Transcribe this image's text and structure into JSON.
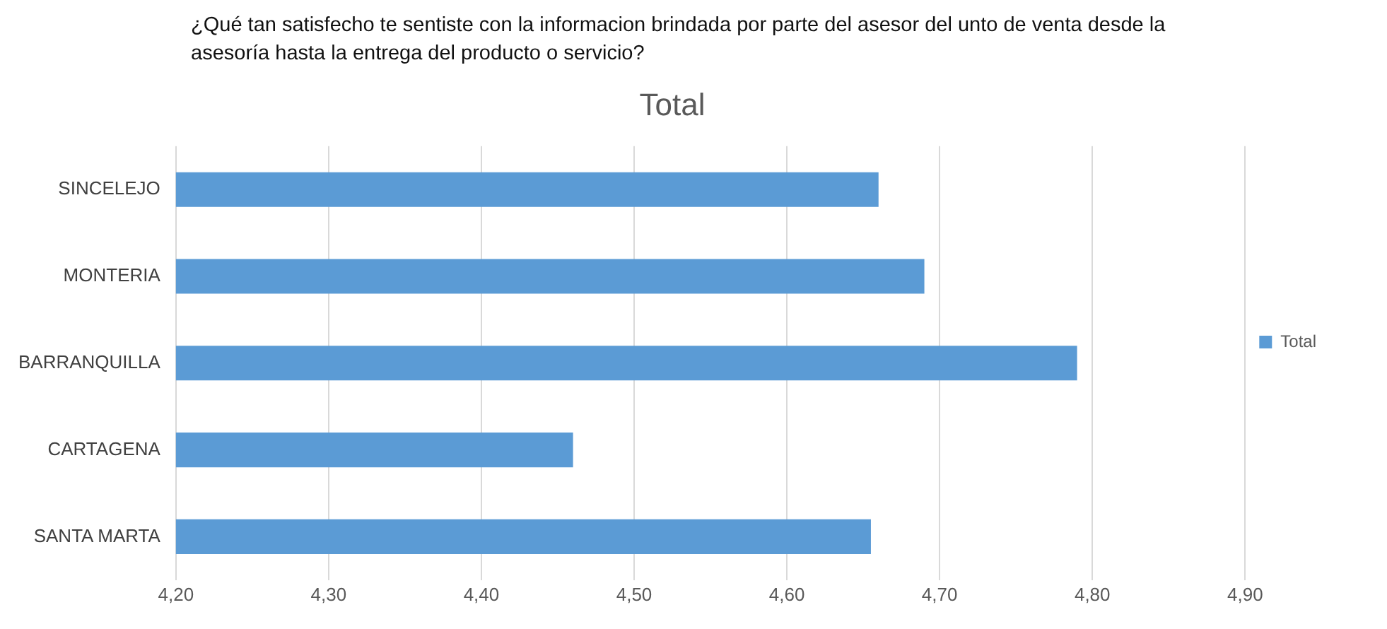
{
  "chart_data": {
    "type": "bar",
    "orientation": "horizontal",
    "title": "¿Qué tan satisfecho te sentiste con la informacion brindada por parte del asesor del unto de venta desde la asesoría hasta la entrega del producto o servicio?",
    "subtitle": "Total",
    "categories": [
      "SINCELEJO",
      "MONTERIA",
      "BARRANQUILLA",
      "CARTAGENA",
      "SANTA MARTA"
    ],
    "series": [
      {
        "name": "Total",
        "color": "#5b9bd5",
        "values": [
          4.66,
          4.69,
          4.79,
          4.46,
          4.655
        ]
      }
    ],
    "xlim": [
      4.2,
      4.9
    ],
    "xticks": [
      {
        "value": 4.2,
        "label": "4,20"
      },
      {
        "value": 4.3,
        "label": "4,30"
      },
      {
        "value": 4.4,
        "label": "4,40"
      },
      {
        "value": 4.5,
        "label": "4,50"
      },
      {
        "value": 4.6,
        "label": "4,60"
      },
      {
        "value": 4.7,
        "label": "4,70"
      },
      {
        "value": 4.8,
        "label": "4,80"
      },
      {
        "value": 4.9,
        "label": "4,90"
      }
    ],
    "grid": "x",
    "legend": "right"
  }
}
